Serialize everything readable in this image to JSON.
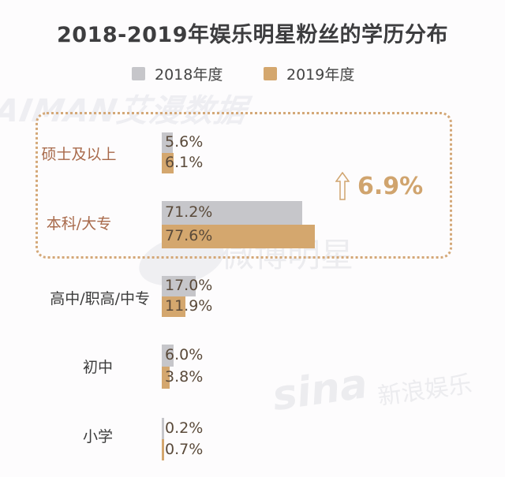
{
  "chart_data": {
    "type": "bar",
    "orientation": "horizontal",
    "title": "2018-2019年娱乐明星粉丝的学历分布",
    "categories": [
      "硕士及以上",
      "本科/大专",
      "高中/职高/中专",
      "初中",
      "小学"
    ],
    "series": [
      {
        "name": "2018年度",
        "color": "#c6c6ca",
        "values": [
          5.6,
          71.2,
          17.0,
          6.0,
          0.2
        ]
      },
      {
        "name": "2019年度",
        "color": "#d4a76e",
        "values": [
          6.1,
          77.6,
          11.9,
          3.8,
          0.7
        ]
      }
    ],
    "value_labels": {
      "2018年度": [
        "5.6%",
        "71.2%",
        "17.0%",
        "6.0%",
        "0.2%"
      ],
      "2019年度": [
        "6.1%",
        "77.6%",
        "11.9%",
        "3.8%",
        "0.7%"
      ]
    },
    "legend_position": "top",
    "grid": false,
    "xlabel": "",
    "ylabel": "",
    "annotation": {
      "text": "6.9%",
      "icon": "up-arrow-icon",
      "applies_to": [
        "硕士及以上",
        "本科/大专"
      ]
    }
  },
  "title": "2018-2019年娱乐明星粉丝的学历分布",
  "legend": [
    {
      "label": "2018年度",
      "color": "#c6c6ca"
    },
    {
      "label": "2019年度",
      "color": "#d4a76e"
    }
  ],
  "highlight": {
    "change": "6.9%",
    "border_color": "#d4a878"
  },
  "category_colors": {
    "highlighted": "#a8694a",
    "normal": "#3b3b3b"
  },
  "watermarks": {
    "aiman": "AIMAN艾漫数据",
    "weibo": "微博明星",
    "sina_logo": "sina",
    "sina_cn": "新浪娱乐"
  }
}
